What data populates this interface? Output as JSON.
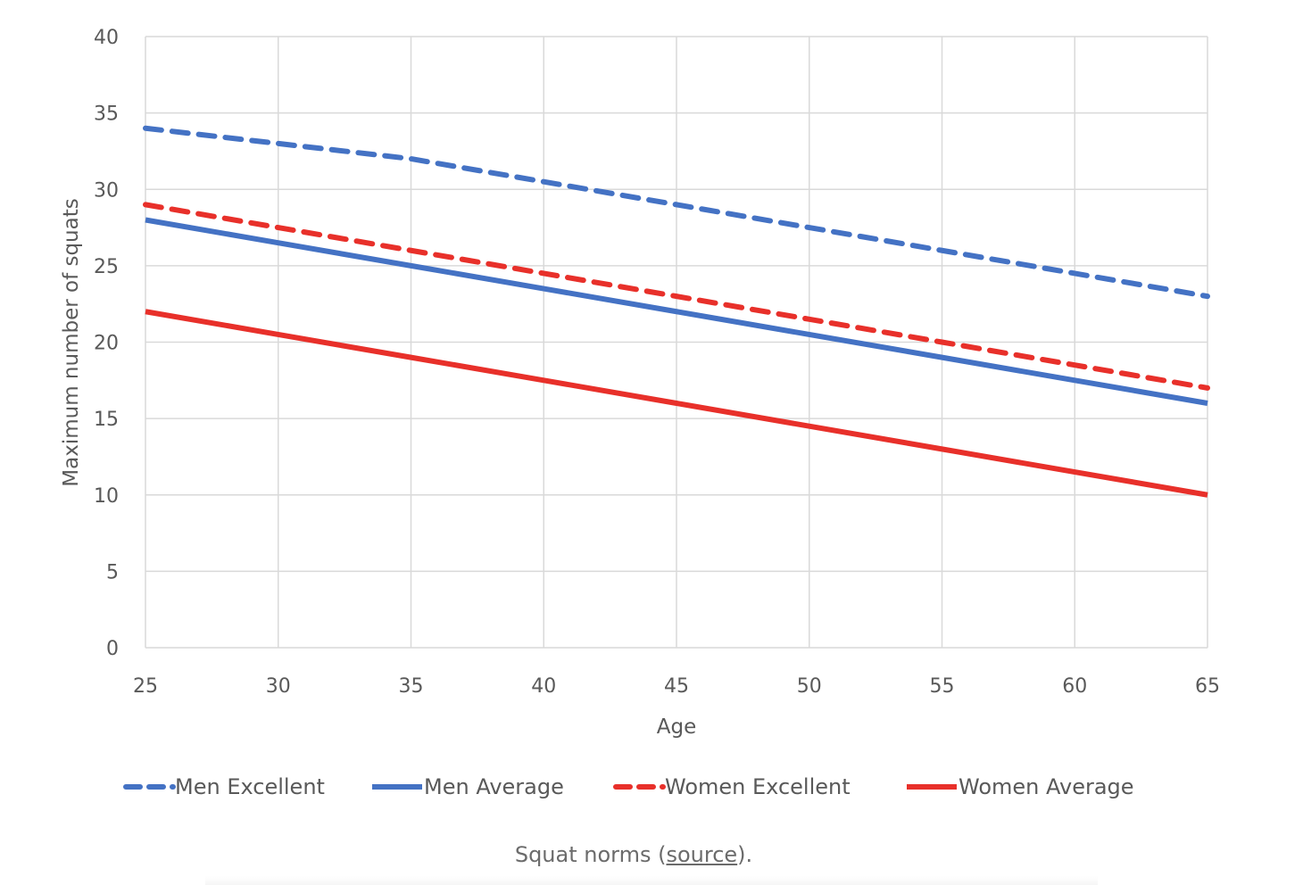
{
  "chart_data": {
    "type": "line",
    "title": "",
    "xlabel": "Age",
    "ylabel": "Maximum number of squats",
    "x": [
      25,
      30,
      35,
      40,
      45,
      50,
      55,
      60,
      65
    ],
    "xlim": [
      25,
      65
    ],
    "ylim": [
      0,
      40
    ],
    "xticks": [
      "25",
      "30",
      "35",
      "40",
      "45",
      "50",
      "55",
      "60",
      "65"
    ],
    "yticks": [
      "0",
      "5",
      "10",
      "15",
      "20",
      "25",
      "30",
      "35",
      "40"
    ],
    "grid": true,
    "legend_position": "bottom",
    "series": [
      {
        "name": "Men Excellent",
        "color": "#4472c4",
        "style": "dashed",
        "values": [
          34,
          33,
          32,
          30.5,
          29,
          27.5,
          26,
          24.5,
          23
        ]
      },
      {
        "name": "Men Average",
        "color": "#4472c4",
        "style": "solid",
        "values": [
          28,
          26.5,
          25,
          23.5,
          22,
          20.5,
          19,
          17.5,
          16
        ]
      },
      {
        "name": "Women Excellent",
        "color": "#e8302a",
        "style": "dashed",
        "values": [
          29,
          27.5,
          26,
          24.5,
          23,
          21.5,
          20,
          18.5,
          17
        ]
      },
      {
        "name": "Women Average",
        "color": "#e8302a",
        "style": "solid",
        "values": [
          22,
          20.5,
          19,
          17.5,
          16,
          14.5,
          13,
          11.5,
          10
        ]
      }
    ]
  },
  "caption": {
    "prefix": "Squat norms (",
    "link": "source",
    "suffix": ")."
  }
}
